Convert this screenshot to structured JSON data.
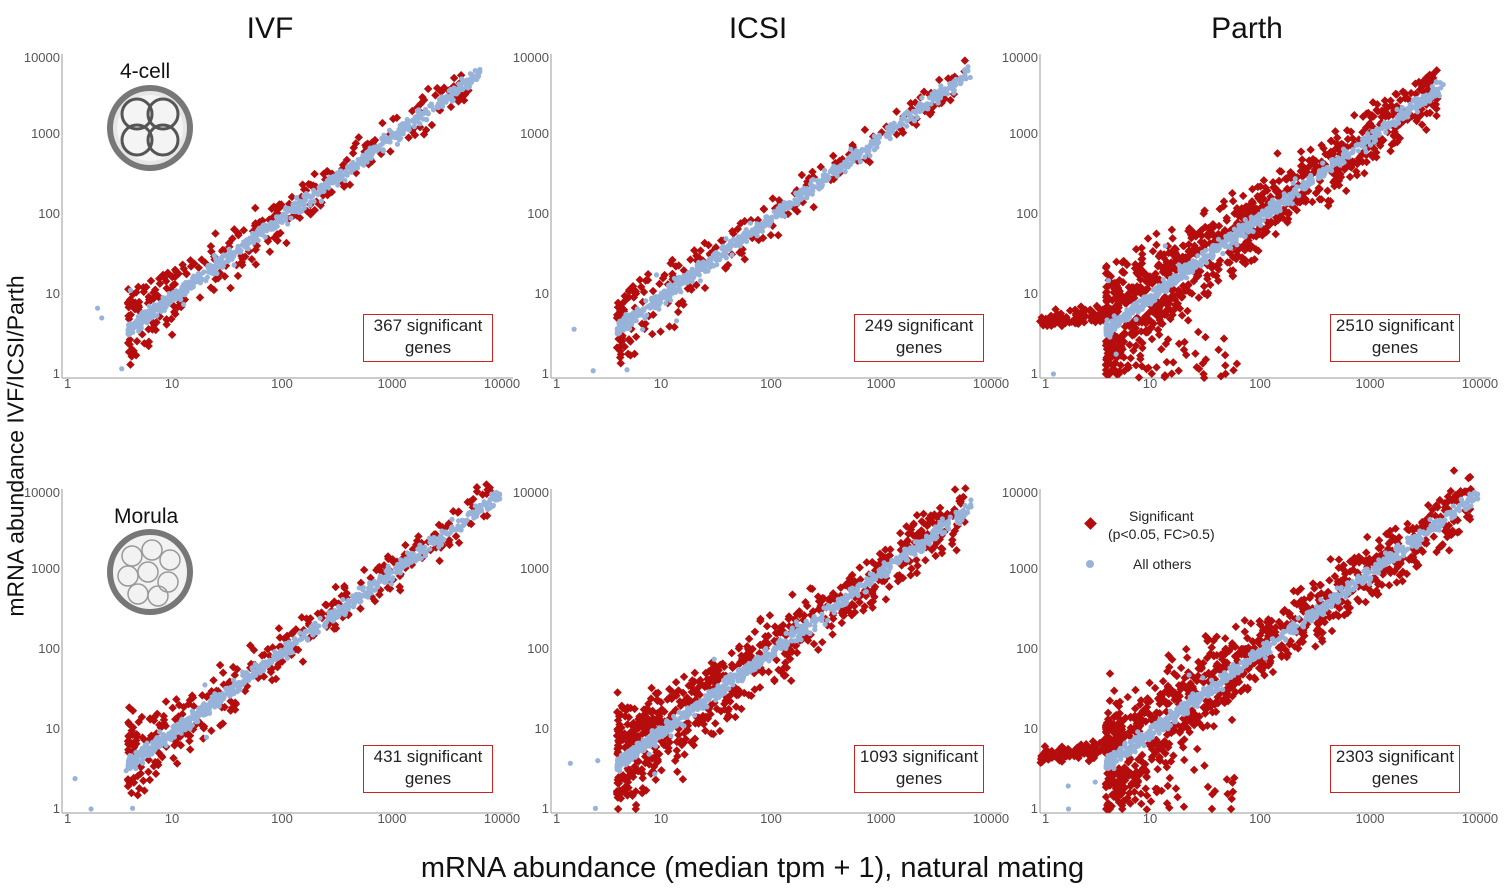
{
  "figure": {
    "y_axis_label": "mRNA abundance IVF/ICSI/Parth",
    "x_axis_label": "mRNA abundance (median tpm + 1), natural mating",
    "columns": [
      "IVF",
      "ICSI",
      "Parth"
    ],
    "rows": [
      "4-cell",
      "Morula"
    ]
  },
  "legend": {
    "significant": "Significant",
    "significant_detail": "(p<0.05, FC>0.5)",
    "others": "All others"
  },
  "colors": {
    "significant": "#b50d0d",
    "others": "#98b3d9",
    "box_border": "#cc2222",
    "axis": "#bbbbbb"
  },
  "icons": [
    "four-cell-embryo-icon",
    "morula-embryo-icon"
  ],
  "chart_data": [
    {
      "type": "scatter",
      "panel": "4-cell IVF",
      "title": "IVF",
      "xscale": "log",
      "yscale": "log",
      "xlim": [
        1,
        10000
      ],
      "ylim": [
        1,
        10000
      ],
      "xticks": [
        "1",
        "10",
        "100",
        "1000",
        "10000"
      ],
      "yticks": [
        "1",
        "10",
        "100",
        "1000",
        "10000"
      ],
      "series": [
        {
          "name": "Significant",
          "marker": "diamond"
        },
        {
          "name": "All others",
          "marker": "circle"
        }
      ],
      "annotation": {
        "count": "367 significant",
        "word": "genes"
      },
      "significant_genes": 367
    },
    {
      "type": "scatter",
      "panel": "4-cell ICSI",
      "title": "ICSI",
      "xscale": "log",
      "yscale": "log",
      "xlim": [
        1,
        10000
      ],
      "ylim": [
        1,
        10000
      ],
      "xticks": [
        "1",
        "10",
        "100",
        "1000",
        "10000"
      ],
      "yticks": [
        "1",
        "10",
        "100",
        "1000",
        "10000"
      ],
      "series": [
        {
          "name": "Significant",
          "marker": "diamond"
        },
        {
          "name": "All others",
          "marker": "circle"
        }
      ],
      "annotation": {
        "count": "249 significant",
        "word": "genes"
      },
      "significant_genes": 249
    },
    {
      "type": "scatter",
      "panel": "4-cell Parth",
      "title": "Parth",
      "xscale": "log",
      "yscale": "log",
      "xlim": [
        1,
        10000
      ],
      "ylim": [
        1,
        10000
      ],
      "xticks": [
        "1",
        "10",
        "100",
        "1000",
        "10000"
      ],
      "yticks": [
        "1",
        "10",
        "100",
        "1000",
        "10000"
      ],
      "series": [
        {
          "name": "Significant",
          "marker": "diamond"
        },
        {
          "name": "All others",
          "marker": "circle"
        }
      ],
      "annotation": {
        "count": "2510 significant",
        "word": "genes"
      },
      "significant_genes": 2510
    },
    {
      "type": "scatter",
      "panel": "Morula IVF",
      "title": "IVF",
      "xscale": "log",
      "yscale": "log",
      "xlim": [
        1,
        10000
      ],
      "ylim": [
        1,
        10000
      ],
      "xticks": [
        "1",
        "10",
        "100",
        "1000",
        "10000"
      ],
      "yticks": [
        "1",
        "10",
        "100",
        "1000",
        "10000"
      ],
      "series": [
        {
          "name": "Significant",
          "marker": "diamond"
        },
        {
          "name": "All others",
          "marker": "circle"
        }
      ],
      "annotation": {
        "count": "431 significant",
        "word": "genes"
      },
      "significant_genes": 431
    },
    {
      "type": "scatter",
      "panel": "Morula ICSI",
      "title": "ICSI",
      "xscale": "log",
      "yscale": "log",
      "xlim": [
        1,
        10000
      ],
      "ylim": [
        1,
        10000
      ],
      "xticks": [
        "1",
        "10",
        "100",
        "1000",
        "10000"
      ],
      "yticks": [
        "1",
        "10",
        "100",
        "1000",
        "10000"
      ],
      "series": [
        {
          "name": "Significant",
          "marker": "diamond"
        },
        {
          "name": "All others",
          "marker": "circle"
        }
      ],
      "annotation": {
        "count": "1093 significant",
        "word": "genes"
      },
      "significant_genes": 1093
    },
    {
      "type": "scatter",
      "panel": "Morula Parth",
      "title": "Parth",
      "xscale": "log",
      "yscale": "log",
      "xlim": [
        1,
        10000
      ],
      "ylim": [
        1,
        10000
      ],
      "xticks": [
        "1",
        "10",
        "100",
        "1000",
        "10000"
      ],
      "yticks": [
        "1",
        "10",
        "100",
        "1000",
        "10000"
      ],
      "series": [
        {
          "name": "Significant",
          "marker": "diamond"
        },
        {
          "name": "All others",
          "marker": "circle"
        }
      ],
      "annotation": {
        "count": "2303 significant",
        "word": "genes"
      },
      "significant_genes": 2303
    }
  ]
}
